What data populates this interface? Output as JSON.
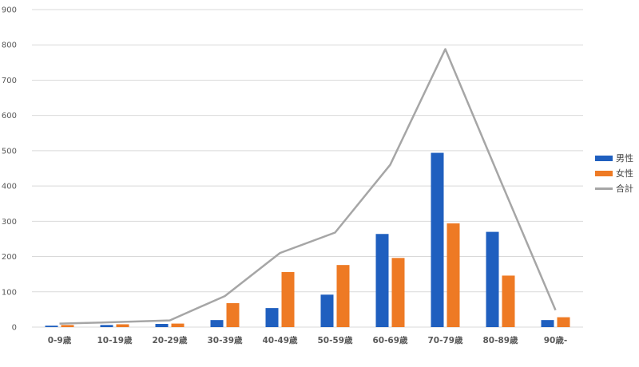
{
  "chart_data": {
    "type": "bar",
    "categories": [
      "0-9歳",
      "10-19歳",
      "20-29歳",
      "30-39歳",
      "40-49歳",
      "50-59歳",
      "60-69歳",
      "70-79歳",
      "80-89歳",
      "90歳-"
    ],
    "series": [
      {
        "name": "男性",
        "type": "bar",
        "color": "#1f5fbf",
        "values": [
          4,
          6,
          9,
          20,
          54,
          92,
          264,
          494,
          270,
          20
        ]
      },
      {
        "name": "女性",
        "type": "bar",
        "color": "#ee7a24",
        "values": [
          6,
          8,
          10,
          68,
          156,
          176,
          196,
          294,
          146,
          28
        ]
      },
      {
        "name": "合計",
        "type": "line",
        "color": "#a6a6a6",
        "values": [
          10,
          14,
          19,
          88,
          210,
          268,
          460,
          788,
          416,
          48
        ]
      }
    ],
    "yticks": [
      "0",
      "100",
      "200",
      "300",
      "400",
      "500",
      "600",
      "700",
      "800",
      "900"
    ],
    "ylim": [
      0,
      900
    ],
    "grid": true,
    "legend_position": "right"
  }
}
